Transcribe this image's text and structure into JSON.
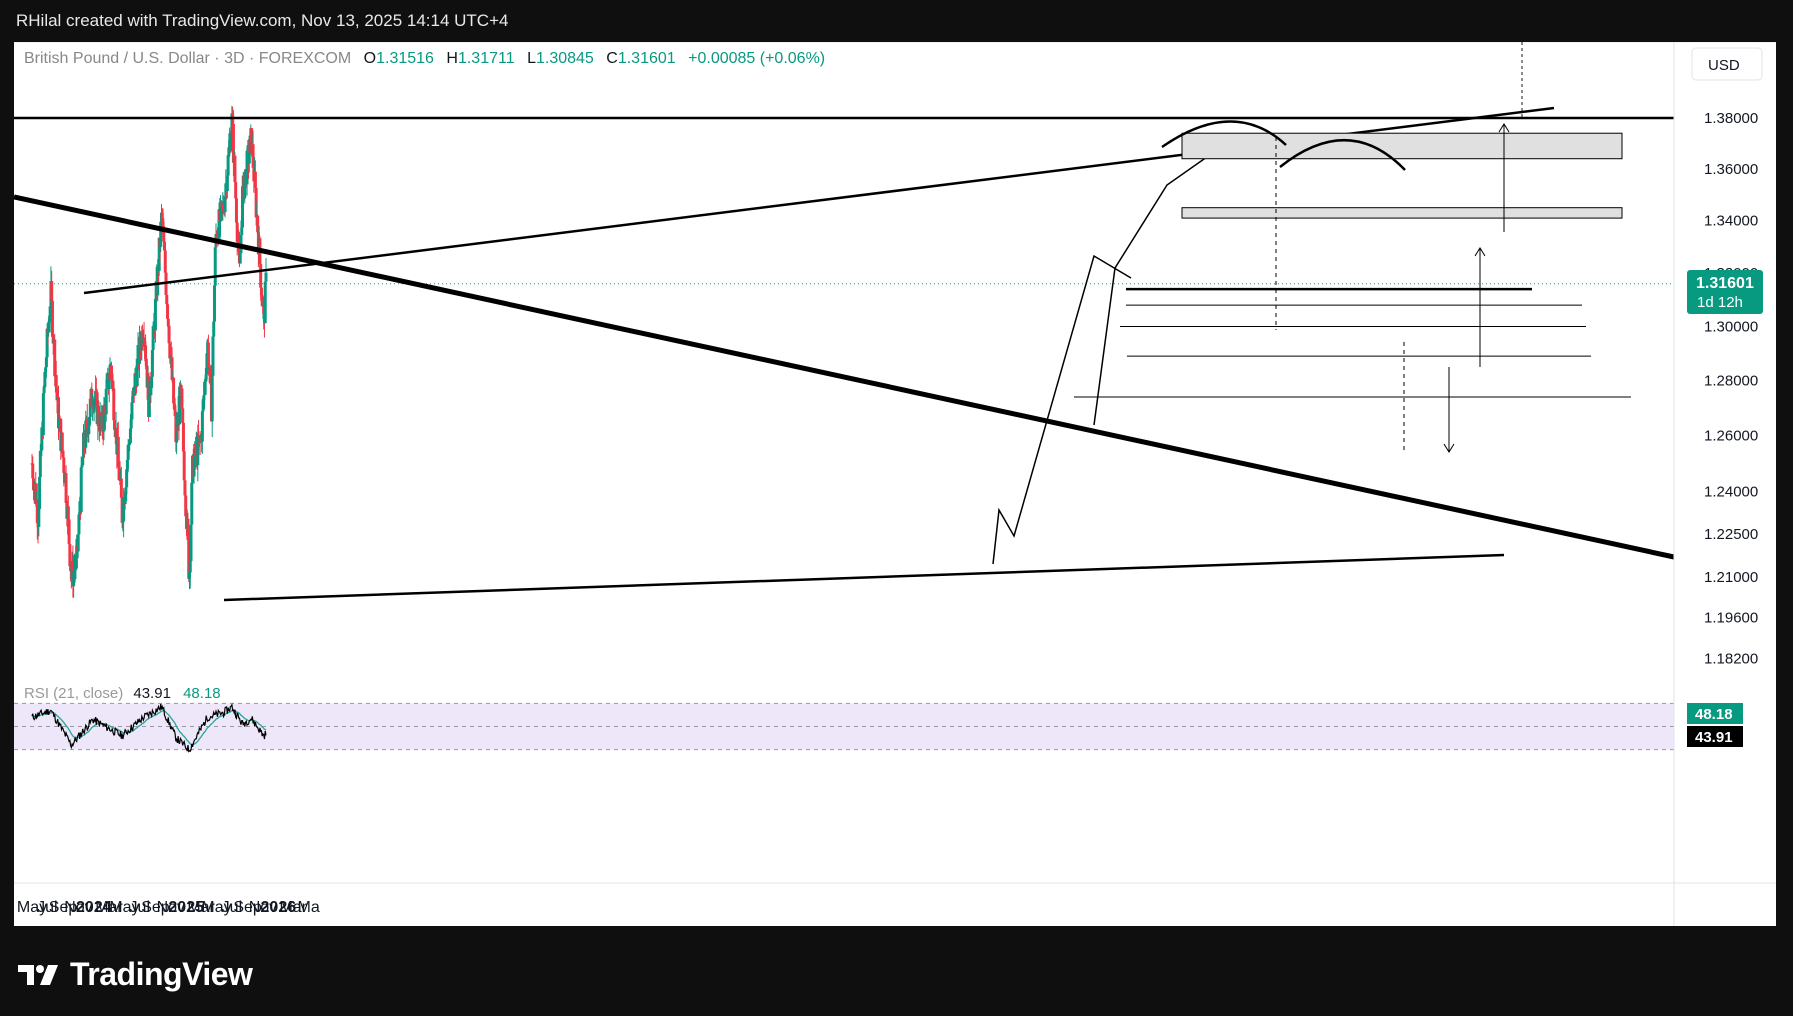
{
  "top_bar": {
    "credit": "RHilal created with TradingView.com, Nov 13, 2025 14:14 UTC+4"
  },
  "legend": {
    "symbol": "British Pound / U.S. Dollar · 3D · FOREXCOM",
    "open_label": "O",
    "open": "1.31516",
    "high_label": "H",
    "high": "1.31711",
    "low_label": "L",
    "low": "1.30845",
    "close_label": "C",
    "close": "1.31601",
    "change": "+0.00085 (+0.06%)"
  },
  "currency_button": "USD",
  "price_tag": {
    "price": "1.31601",
    "countdown": "1d 12h"
  },
  "rsi": {
    "label": "RSI (21, close)",
    "value": "43.91",
    "ma_value": "48.18"
  },
  "colors": {
    "up": "#089981",
    "down": "#f23645",
    "rsi_line": "#000000",
    "rsi_ma": "#26a69a",
    "rsi_band": "#ede7f9"
  },
  "brand": {
    "name": "TradingView"
  },
  "chart_data": {
    "type": "candlestick",
    "title": "British Pound / U.S. Dollar · 3D · FOREXCOM",
    "x_ticks": [
      "May",
      "Jul",
      "Sep",
      "Nov",
      "2024",
      "Mar",
      "May",
      "Jul",
      "Sep",
      "Nov",
      "2025",
      "Mar",
      "May",
      "Jul",
      "Sep",
      "Nov",
      "2026",
      "Mar",
      "Ma"
    ],
    "x_ticks_bold": [
      "2024",
      "2025",
      "2026"
    ],
    "y_ticks": [
      "1.38000",
      "1.36000",
      "1.34000",
      "1.32000",
      "1.30000",
      "1.28000",
      "1.26000",
      "1.24000",
      "1.22500",
      "1.21000",
      "1.19600",
      "1.18200"
    ],
    "y_scale": "log",
    "last_price": 1.31601,
    "price_path": [
      {
        "date": "2023-05-01",
        "price": 1.25
      },
      {
        "date": "2023-05-25",
        "price": 1.232
      },
      {
        "date": "2023-06-20",
        "price": 1.28
      },
      {
        "date": "2023-07-14",
        "price": 1.313
      },
      {
        "date": "2023-08-10",
        "price": 1.27
      },
      {
        "date": "2023-09-10",
        "price": 1.245
      },
      {
        "date": "2023-10-04",
        "price": 1.21
      },
      {
        "date": "2023-10-25",
        "price": 1.215
      },
      {
        "date": "2023-11-20",
        "price": 1.255
      },
      {
        "date": "2023-12-28",
        "price": 1.276
      },
      {
        "date": "2024-02-01",
        "price": 1.262
      },
      {
        "date": "2024-03-08",
        "price": 1.286
      },
      {
        "date": "2024-04-22",
        "price": 1.232
      },
      {
        "date": "2024-06-12",
        "price": 1.28
      },
      {
        "date": "2024-07-17",
        "price": 1.302
      },
      {
        "date": "2024-08-06",
        "price": 1.271
      },
      {
        "date": "2024-09-26",
        "price": 1.342
      },
      {
        "date": "2024-10-30",
        "price": 1.29
      },
      {
        "date": "2024-11-22",
        "price": 1.258
      },
      {
        "date": "2024-12-10",
        "price": 1.276
      },
      {
        "date": "2025-01-13",
        "price": 1.21
      },
      {
        "date": "2025-01-27",
        "price": 1.25
      },
      {
        "date": "2025-02-28",
        "price": 1.258
      },
      {
        "date": "2025-03-26",
        "price": 1.294
      },
      {
        "date": "2025-04-11",
        "price": 1.271
      },
      {
        "date": "2025-04-28",
        "price": 1.334
      },
      {
        "date": "2025-05-30",
        "price": 1.346
      },
      {
        "date": "2025-07-01",
        "price": 1.379
      },
      {
        "date": "2025-07-31",
        "price": 1.32
      },
      {
        "date": "2025-08-12",
        "price": 1.35
      },
      {
        "date": "2025-09-16",
        "price": 1.372
      },
      {
        "date": "2025-10-14",
        "price": 1.333
      },
      {
        "date": "2025-11-04",
        "price": 1.301
      },
      {
        "date": "2025-11-13",
        "price": 1.316
      }
    ],
    "drawings": {
      "horizontal_resistance": 1.38,
      "support_lines": [
        1.314,
        1.308,
        1.3,
        1.289,
        1.274
      ],
      "supply_zones": [
        {
          "from": 1.364,
          "to": 1.374
        },
        {
          "from": 1.341,
          "to": 1.345
        }
      ],
      "double_top_arcs": 2
    },
    "rsi_series": [
      {
        "date": "2023-05-01",
        "rsi": 58
      },
      {
        "date": "2023-07-14",
        "rsi": 64
      },
      {
        "date": "2023-10-04",
        "rsi": 34
      },
      {
        "date": "2023-12-28",
        "rsi": 56
      },
      {
        "date": "2024-04-22",
        "rsi": 42
      },
      {
        "date": "2024-07-17",
        "rsi": 58
      },
      {
        "date": "2024-09-26",
        "rsi": 67
      },
      {
        "date": "2024-11-22",
        "rsi": 40
      },
      {
        "date": "2025-01-13",
        "rsi": 30
      },
      {
        "date": "2025-03-26",
        "rsi": 58
      },
      {
        "date": "2025-05-30",
        "rsi": 62
      },
      {
        "date": "2025-07-01",
        "rsi": 67
      },
      {
        "date": "2025-08-12",
        "rsi": 52
      },
      {
        "date": "2025-09-16",
        "rsi": 57
      },
      {
        "date": "2025-11-04",
        "rsi": 42
      },
      {
        "date": "2025-11-13",
        "rsi": 43.91
      }
    ],
    "rsi_levels": [
      70,
      50,
      30
    ]
  }
}
